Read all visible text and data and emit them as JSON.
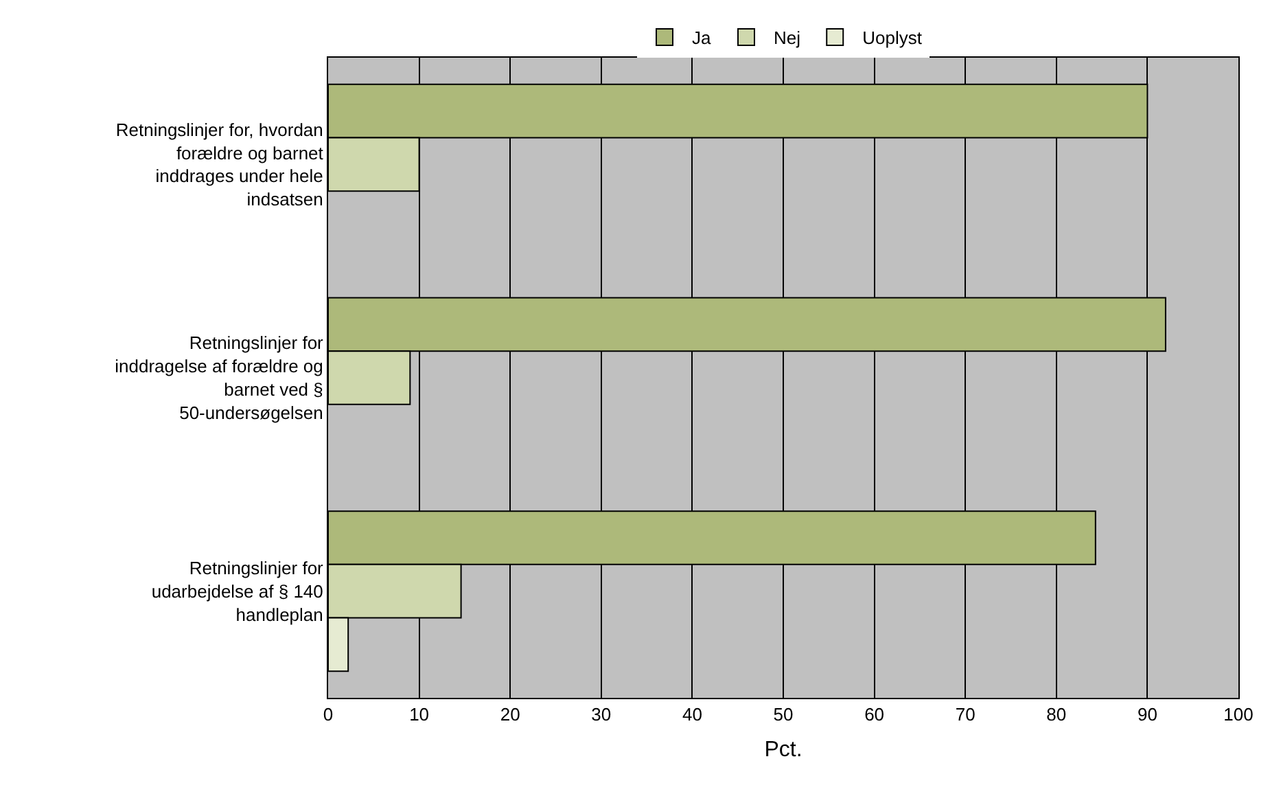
{
  "chart_data": {
    "type": "bar",
    "orientation": "horizontal",
    "xlabel": "Pct.",
    "categories": [
      "Retningslinjer for, hvordan forældre og barnet inddrages under hele indsatsen",
      "Retningslinjer for inddragelse af forældre og barnet ved § 50-undersøgelsen",
      "Retningslinjer for udarbejdelse af § 140 handleplan"
    ],
    "series": [
      {
        "name": "Ja",
        "color": "#adb97a",
        "values": [
          90,
          92,
          84.3
        ]
      },
      {
        "name": "Nej",
        "color": "#cfd8ad",
        "values": [
          10,
          9,
          14.6
        ]
      },
      {
        "name": "Uoplyst",
        "color": "#e6ebd2",
        "values": [
          null,
          null,
          2.2
        ]
      }
    ],
    "xlim": [
      0,
      100
    ],
    "xticks": [
      0,
      10,
      20,
      30,
      40,
      50,
      60,
      70,
      80,
      90,
      100
    ],
    "grid": "x",
    "legend": "top"
  }
}
